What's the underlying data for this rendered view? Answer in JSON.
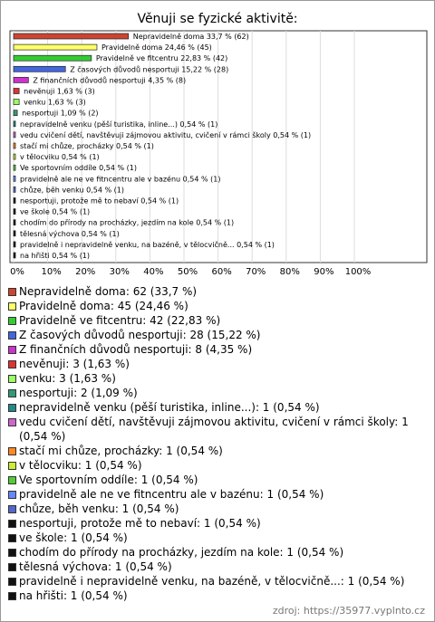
{
  "chart_data": {
    "type": "bar",
    "orientation": "horizontal",
    "title": "Věnuji se fyzické aktivitě:",
    "categories": [
      "Nepravidelně doma",
      "Pravidelně doma",
      "Pravidelně ve fitcentru",
      "Z časových důvodů nesportuji",
      "Z finančních důvodů nesportuji",
      "nevěnuji",
      "venku",
      "nesportuji",
      "nepravidelně venku (pěší turistika, inline...)",
      "vedu cvičení dětí, navštěvuji zájmovou aktivitu, cvičení v rámci školy",
      "stačí mi chůze, procházky",
      "v tělocviku",
      "Ve sportovním oddíle",
      "pravidelně ale ne ve fitncentru ale v bazénu",
      "chůze, běh venku",
      "nesportuji, protože mě to nebaví",
      "ve škole",
      "chodím do přírody na procházky, jezdím na kole",
      "tělesná výchova",
      "pravidelně i nepravidelně venku, na bazéně, v tělocvičně...",
      "na hřišti"
    ],
    "values": [
      33.7,
      24.46,
      22.83,
      15.22,
      4.35,
      1.63,
      1.63,
      1.09,
      0.54,
      0.54,
      0.54,
      0.54,
      0.54,
      0.54,
      0.54,
      0.54,
      0.54,
      0.54,
      0.54,
      0.54,
      0.54
    ],
    "value_labels": [
      "33,7 % (62)",
      "24,46 % (45)",
      "22,83 % (42)",
      "15,22 % (28)",
      "4,35 % (8)",
      "1,63 % (3)",
      "1,63 % (3)",
      "1,09 % (2)",
      "0,54 % (1)",
      "0,54 % (1)",
      "0,54 % (1)",
      "0,54 % (1)",
      "0,54 % (1)",
      "0,54 % (1)",
      "0,54 % (1)",
      "0,54 % (1)",
      "0,54 % (1)",
      "0,54 % (1)",
      "0,54 % (1)",
      "0,54 % (1)",
      "0,54 % (1)"
    ],
    "colors": [
      "#cc4433",
      "#ffff66",
      "#33cc33",
      "#4466dd",
      "#cc33cc",
      "#dd3333",
      "#99ff66",
      "#339977",
      "#228888",
      "#cc66cc",
      "#ff8822",
      "#ccee33",
      "#55cc33",
      "#6688ff",
      "#5566cc",
      "#111111",
      "#111111",
      "#111111",
      "#111111",
      "#111111",
      "#111111"
    ],
    "legend": [
      "Nepravidelně doma: 62 (33,7 %)",
      "Pravidelně doma: 45 (24,46 %)",
      "Pravidelně ve fitcentru: 42 (22,83 %)",
      "Z časových důvodů nesportuji: 28 (15,22 %)",
      "Z finančních důvodů nesportuji: 8 (4,35 %)",
      "nevěnuji: 3 (1,63 %)",
      "venku: 3 (1,63 %)",
      "nesportuji: 2 (1,09 %)",
      "nepravidelně venku (pěší turistika, inline...): 1 (0,54 %)",
      "vedu cvičení dětí, navštěvuji zájmovou aktivitu, cvičení v rámci školy: 1 (0,54 %)",
      "stačí mi chůze, procházky: 1 (0,54 %)",
      "v tělocviku: 1 (0,54 %)",
      "Ve sportovním oddíle: 1 (0,54 %)",
      "pravidelně ale ne ve fitncentru ale v bazénu: 1 (0,54 %)",
      "chůze, běh venku: 1 (0,54 %)",
      "nesportuji, protože mě to nebaví: 1 (0,54 %)",
      "ve škole: 1 (0,54 %)",
      "chodím do přírody na procházky, jezdím na kole: 1 (0,54 %)",
      "tělesná výchova: 1 (0,54 %)",
      "pravidelně i nepravidelně venku, na bazéně, v tělocvičně...: 1 (0,54 %)",
      "na hřišti: 1 (0,54 %)"
    ],
    "xlim": [
      0,
      100
    ],
    "xticks": [
      {
        "value": 0,
        "label": "0%"
      },
      {
        "value": 10,
        "label": "10%"
      },
      {
        "value": 20,
        "label": "20%"
      },
      {
        "value": 30,
        "label": "30%"
      },
      {
        "value": 40,
        "label": "40%"
      },
      {
        "value": 50,
        "label": "50%"
      },
      {
        "value": 60,
        "label": "60%"
      },
      {
        "value": 70,
        "label": "70%"
      },
      {
        "value": 80,
        "label": "80%"
      },
      {
        "value": 90,
        "label": "90%"
      },
      {
        "value": 100,
        "label": "100%"
      }
    ],
    "grid": true,
    "source": "zdroj: https://35977.vyplnto.cz"
  }
}
